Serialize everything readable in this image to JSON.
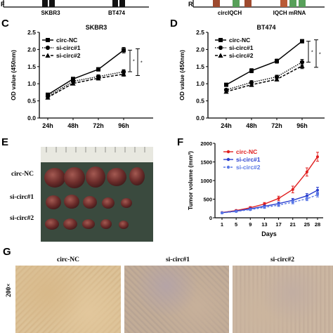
{
  "panels": {
    "top_left": {
      "categories": [
        "SKBR3",
        "BT474"
      ],
      "ylabel_fragment": "F"
    },
    "top_right": {
      "categories": [
        "circIQCH",
        "IQCH mRNA"
      ],
      "ylabel_fragment": "R"
    },
    "C": {
      "letter": "C"
    },
    "D": {
      "letter": "D"
    },
    "E": {
      "letter": "E",
      "rows": [
        "circ-NC",
        "si-circ#1",
        "si-circ#2"
      ]
    },
    "F": {
      "letter": "F"
    },
    "G": {
      "letter": "G",
      "columns": [
        "circ-NC",
        "si-circ#1",
        "si-circ#2"
      ],
      "magnification": "200×"
    }
  },
  "chart_data": [
    {
      "id": "C",
      "type": "line",
      "title": "SKBR3",
      "xlabel": "",
      "ylabel": "OD value (450nm)",
      "categories": [
        "24h",
        "48h",
        "72h",
        "96h"
      ],
      "ylim": [
        0.0,
        2.5
      ],
      "yticks": [
        "0.0",
        "0.5",
        "1.0",
        "1.5",
        "2.0",
        "2.5"
      ],
      "legend": "top-left",
      "series": [
        {
          "name": "circ-NC",
          "values": [
            0.68,
            1.14,
            1.42,
            1.98
          ],
          "err": [
            0.04,
            0.05,
            0.05,
            0.08
          ],
          "marker": "square",
          "dash": "solid"
        },
        {
          "name": "si-circ#1",
          "values": [
            0.63,
            1.07,
            1.21,
            1.35
          ],
          "err": [
            0.04,
            0.04,
            0.05,
            0.06
          ],
          "marker": "circle",
          "dash": "dotted"
        },
        {
          "name": "si-circ#2",
          "values": [
            0.6,
            1.01,
            1.16,
            1.28
          ],
          "err": [
            0.04,
            0.04,
            0.05,
            0.06
          ],
          "marker": "triangle",
          "dash": "dashed"
        }
      ],
      "significance": [
        "*",
        "*"
      ]
    },
    {
      "id": "D",
      "type": "line",
      "title": "BT474",
      "xlabel": "",
      "ylabel": "OD value (450nm)",
      "categories": [
        "24h",
        "48h",
        "72h",
        "96h"
      ],
      "ylim": [
        0.0,
        2.5
      ],
      "yticks": [
        "0.0",
        "0.5",
        "1.0",
        "1.5",
        "2.0",
        "2.5"
      ],
      "legend": "top-left",
      "series": [
        {
          "name": "circ-NC",
          "values": [
            0.97,
            1.38,
            1.66,
            2.24
          ],
          "err": [
            0.04,
            0.06,
            0.06,
            0.05
          ],
          "marker": "square",
          "dash": "solid"
        },
        {
          "name": "si-circ#1",
          "values": [
            0.82,
            1.04,
            1.2,
            1.63
          ],
          "err": [
            0.04,
            0.05,
            0.05,
            0.08
          ],
          "marker": "circle",
          "dash": "dotted"
        },
        {
          "name": "si-circ#2",
          "values": [
            0.77,
            0.97,
            1.13,
            1.52
          ],
          "err": [
            0.04,
            0.05,
            0.05,
            0.08
          ],
          "marker": "triangle",
          "dash": "dashed"
        }
      ],
      "significance": [
        "*",
        "*"
      ]
    },
    {
      "id": "F",
      "type": "line",
      "title": "",
      "xlabel": "Days",
      "ylabel": "Tumor volume (mm³)",
      "x": [
        1,
        5,
        9,
        13,
        17,
        21,
        25,
        28
      ],
      "xticks": [
        "1",
        "5",
        "9",
        "13",
        "17",
        "21",
        "25",
        "28"
      ],
      "ylim": [
        0,
        2000
      ],
      "yticks": [
        "0",
        "500",
        "1000",
        "1500",
        "2000"
      ],
      "legend": "top-left",
      "series": [
        {
          "name": "circ-NC",
          "color": "#e02020",
          "values": [
            140,
            195,
            270,
            370,
            520,
            760,
            1230,
            1640
          ],
          "err": [
            15,
            20,
            30,
            40,
            60,
            90,
            110,
            120
          ],
          "dash": "solid"
        },
        {
          "name": "si-circ#1",
          "color": "#2a3fcf",
          "values": [
            135,
            180,
            240,
            310,
            380,
            470,
            590,
            740
          ],
          "err": [
            15,
            18,
            25,
            30,
            40,
            50,
            60,
            80
          ],
          "dash": "solid"
        },
        {
          "name": "si-circ#2",
          "color": "#5a78e6",
          "values": [
            130,
            170,
            220,
            280,
            340,
            420,
            510,
            620
          ],
          "err": [
            15,
            18,
            22,
            28,
            35,
            45,
            50,
            60
          ],
          "dash": "dashed"
        }
      ]
    }
  ]
}
